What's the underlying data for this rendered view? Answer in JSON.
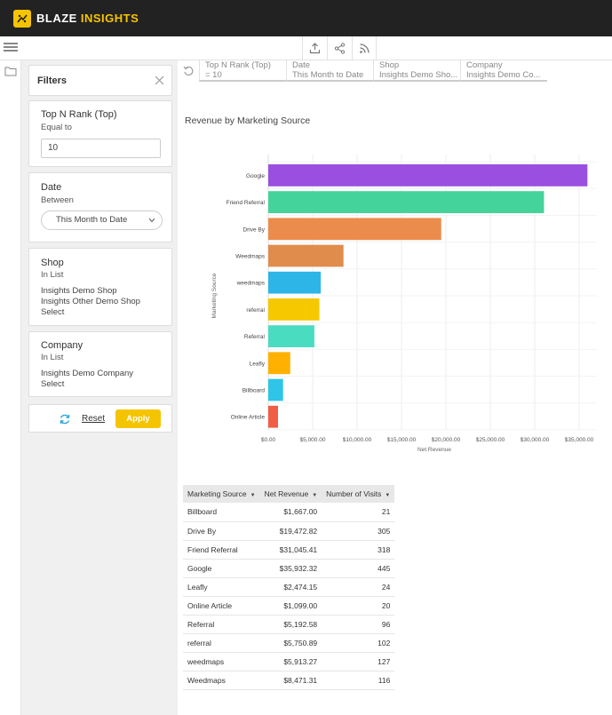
{
  "app": {
    "brand_part1": "BLAZE",
    "brand_part2": "INSIGHTS",
    "accent_color": "#f5c400"
  },
  "toolbar": {
    "icons": [
      "upload-icon",
      "share-icon",
      "rss-icon"
    ]
  },
  "filters": {
    "title": "Filters",
    "top_n": {
      "title": "Top N Rank (Top)",
      "operator": "Equal to",
      "value": "10"
    },
    "date": {
      "title": "Date",
      "operator": "Between",
      "value": "This Month to Date"
    },
    "shop": {
      "title": "Shop",
      "operator": "In List",
      "items": [
        "Insights Demo Shop",
        "Insights Other Demo Shop"
      ],
      "select_label": "Select"
    },
    "company": {
      "title": "Company",
      "operator": "In List",
      "items": [
        "Insights Demo Company"
      ],
      "select_label": "Select"
    },
    "reset_label": "Reset",
    "apply_label": "Apply"
  },
  "filter_bar": [
    {
      "label": "Top N Rank (Top)",
      "value": "= 10"
    },
    {
      "label": "Date",
      "value": "This Month to Date"
    },
    {
      "label": "Shop",
      "value": "Insights Demo Sho..."
    },
    {
      "label": "Company",
      "value": "Insights Demo Co..."
    }
  ],
  "chart_data": {
    "type": "bar",
    "orientation": "horizontal",
    "title": "Revenue by Marketing Source",
    "xlabel": "Net Revenue",
    "ylabel": "Marketing Source",
    "xlim": [
      0,
      37000
    ],
    "x_ticks": [
      "$0.00",
      "$5,000.00",
      "$10,000.00",
      "$15,000.00",
      "$20,000.00",
      "$25,000.00",
      "$30,000.00",
      "$35,000.00"
    ],
    "x_tick_values": [
      0,
      5000,
      10000,
      15000,
      20000,
      25000,
      30000,
      35000
    ],
    "categories": [
      "Google",
      "Friend Referral",
      "Drive By",
      "Weedmaps",
      "weedmaps",
      "referral",
      "Referral",
      "Leafly",
      "Billboard",
      "Online Article"
    ],
    "values": [
      35932.32,
      31045.41,
      19472.82,
      8471.31,
      5913.27,
      5750.89,
      5192.58,
      2474.15,
      1667.0,
      1099.0
    ],
    "colors": [
      "#9b4fe0",
      "#44d39a",
      "#ec8c4c",
      "#e08c4c",
      "#2eb5e8",
      "#f5c800",
      "#4adcc0",
      "#ffb000",
      "#2ec5e8",
      "#f05e45"
    ],
    "grid": true
  },
  "table": {
    "headers": [
      "Marketing Source",
      "Net Revenue",
      "Number of Visits"
    ],
    "rows": [
      [
        "Billboard",
        "$1,667.00",
        "21"
      ],
      [
        "Drive By",
        "$19,472.82",
        "305"
      ],
      [
        "Friend Referral",
        "$31,045.41",
        "318"
      ],
      [
        "Google",
        "$35,932.32",
        "445"
      ],
      [
        "Leafly",
        "$2,474.15",
        "24"
      ],
      [
        "Online Article",
        "$1,099.00",
        "20"
      ],
      [
        "Referral",
        "$5,192.58",
        "96"
      ],
      [
        "referral",
        "$5,750.89",
        "102"
      ],
      [
        "weedmaps",
        "$5,913.27",
        "127"
      ],
      [
        "Weedmaps",
        "$8,471.31",
        "116"
      ]
    ]
  }
}
